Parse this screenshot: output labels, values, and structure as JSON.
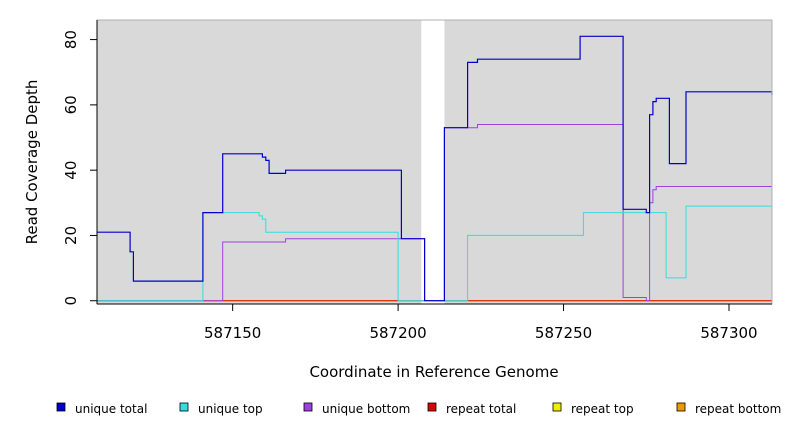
{
  "chart_data": {
    "type": "line",
    "title": "",
    "xlabel": "Coordinate in Reference Genome",
    "ylabel": "Read Coverage Depth",
    "xlim": [
      587109,
      587313
    ],
    "ylim": [
      -1,
      86
    ],
    "xticks": [
      587150,
      587200,
      587250,
      587300
    ],
    "yticks": [
      0,
      20,
      40,
      60,
      80
    ],
    "grid": false,
    "background": "#d9d9d9",
    "gap": [
      587207,
      587214
    ],
    "series": [
      {
        "name": "unique total",
        "color": "#0000cc",
        "steps": [
          [
            587109,
            21
          ],
          [
            587119,
            15
          ],
          [
            587120,
            6
          ],
          [
            587141,
            27
          ],
          [
            587147,
            45
          ],
          [
            587159,
            44
          ],
          [
            587160,
            43
          ],
          [
            587161,
            39
          ],
          [
            587166,
            40
          ],
          [
            587201,
            19
          ],
          [
            587208,
            0
          ],
          [
            587214,
            53
          ],
          [
            587221,
            73
          ],
          [
            587224,
            74
          ],
          [
            587255,
            81
          ],
          [
            587268,
            28
          ],
          [
            587275,
            27
          ],
          [
            587276,
            57
          ],
          [
            587277,
            61
          ],
          [
            587278,
            62
          ],
          [
            587282,
            42
          ],
          [
            587287,
            64
          ],
          [
            587313,
            63
          ]
        ]
      },
      {
        "name": "unique top",
        "color": "#33dddd",
        "steps": [
          [
            587109,
            0
          ],
          [
            587141,
            27
          ],
          [
            587158,
            26
          ],
          [
            587159,
            25
          ],
          [
            587160,
            21
          ],
          [
            587200,
            0
          ],
          [
            587221,
            20
          ],
          [
            587256,
            27
          ],
          [
            587281,
            7
          ],
          [
            587287,
            29
          ]
        ]
      },
      {
        "name": "unique bottom",
        "color": "#a040e0",
        "steps": [
          [
            587109,
            0
          ],
          [
            587147,
            18
          ],
          [
            587166,
            19
          ],
          [
            587201,
            19
          ],
          [
            587208,
            0
          ],
          [
            587214,
            53
          ],
          [
            587224,
            54
          ],
          [
            587268,
            1
          ],
          [
            587275,
            0
          ],
          [
            587276,
            30
          ],
          [
            587277,
            34
          ],
          [
            587278,
            35
          ]
        ]
      },
      {
        "name": "repeat total",
        "color": "#dd0000",
        "steps": [
          [
            587109,
            0
          ]
        ]
      },
      {
        "name": "repeat top",
        "color": "#eeee00",
        "steps": [
          [
            587109,
            0
          ]
        ]
      },
      {
        "name": "repeat bottom",
        "color": "#ee9900",
        "steps": [
          [
            587109,
            0
          ]
        ]
      }
    ]
  }
}
